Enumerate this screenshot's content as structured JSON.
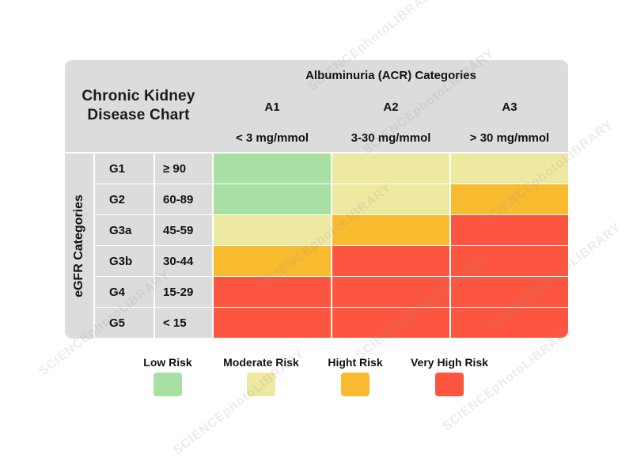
{
  "title_lines": [
    "Chronic Kidney",
    "Disease Chart"
  ],
  "column_header": "Albuminuria (ACR) Categories",
  "row_header": "eGFR Categories",
  "columns": [
    {
      "code": "A1",
      "range": "< 3 mg/mmol"
    },
    {
      "code": "A2",
      "range": "3-30 mg/mmol"
    },
    {
      "code": "A3",
      "range": "> 30 mg/mmol"
    }
  ],
  "rows": [
    {
      "code": "G1",
      "range": "≥ 90"
    },
    {
      "code": "G2",
      "range": "60-89"
    },
    {
      "code": "G3a",
      "range": "45-59"
    },
    {
      "code": "G3b",
      "range": "30-44"
    },
    {
      "code": "G4",
      "range": "15-29"
    },
    {
      "code": "G5",
      "range": "< 15"
    }
  ],
  "risk_levels": [
    {
      "name": "Low Risk",
      "color": "#a8e0a4"
    },
    {
      "name": "Moderate Risk",
      "color": "#ede9a1"
    },
    {
      "name": "Hight Risk",
      "color": "#f8bb30"
    },
    {
      "name": "Very High Risk",
      "color": "#fc5640"
    }
  ],
  "chart_data": {
    "type": "heatmap",
    "x_categories": [
      "A1",
      "A2",
      "A3"
    ],
    "y_categories": [
      "G1",
      "G2",
      "G3a",
      "G3b",
      "G4",
      "G5"
    ],
    "values": [
      [
        0,
        1,
        1
      ],
      [
        0,
        1,
        2
      ],
      [
        1,
        2,
        3
      ],
      [
        2,
        3,
        3
      ],
      [
        3,
        3,
        3
      ],
      [
        3,
        3,
        3
      ]
    ]
  },
  "watermark": "SCIENCEphotoLIBRARY"
}
